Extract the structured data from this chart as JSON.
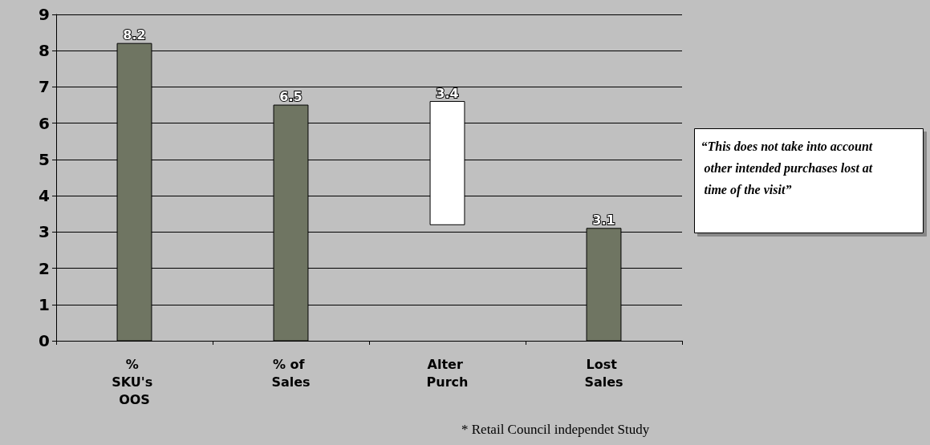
{
  "chart_data": {
    "type": "bar",
    "categories": [
      "% SKU's OOS",
      "% of Sales",
      "Alter Purch",
      "Lost Sales"
    ],
    "values": [
      8.2,
      6.5,
      3.4,
      3.1
    ],
    "base": [
      0,
      0,
      3.2,
      0
    ],
    "colors": [
      "#6f7562",
      "#6f7562",
      "#ffffff",
      "#6f7562"
    ],
    "ylim": [
      0,
      9
    ],
    "yticks": [
      0,
      1,
      2,
      3,
      4,
      5,
      6,
      7,
      8,
      9
    ],
    "grid": "y",
    "data_labels": true,
    "annotations": [
      "“This does not take into account other intended purchases lost at time of the visit”",
      "* Retail Council independet Study"
    ]
  }
}
